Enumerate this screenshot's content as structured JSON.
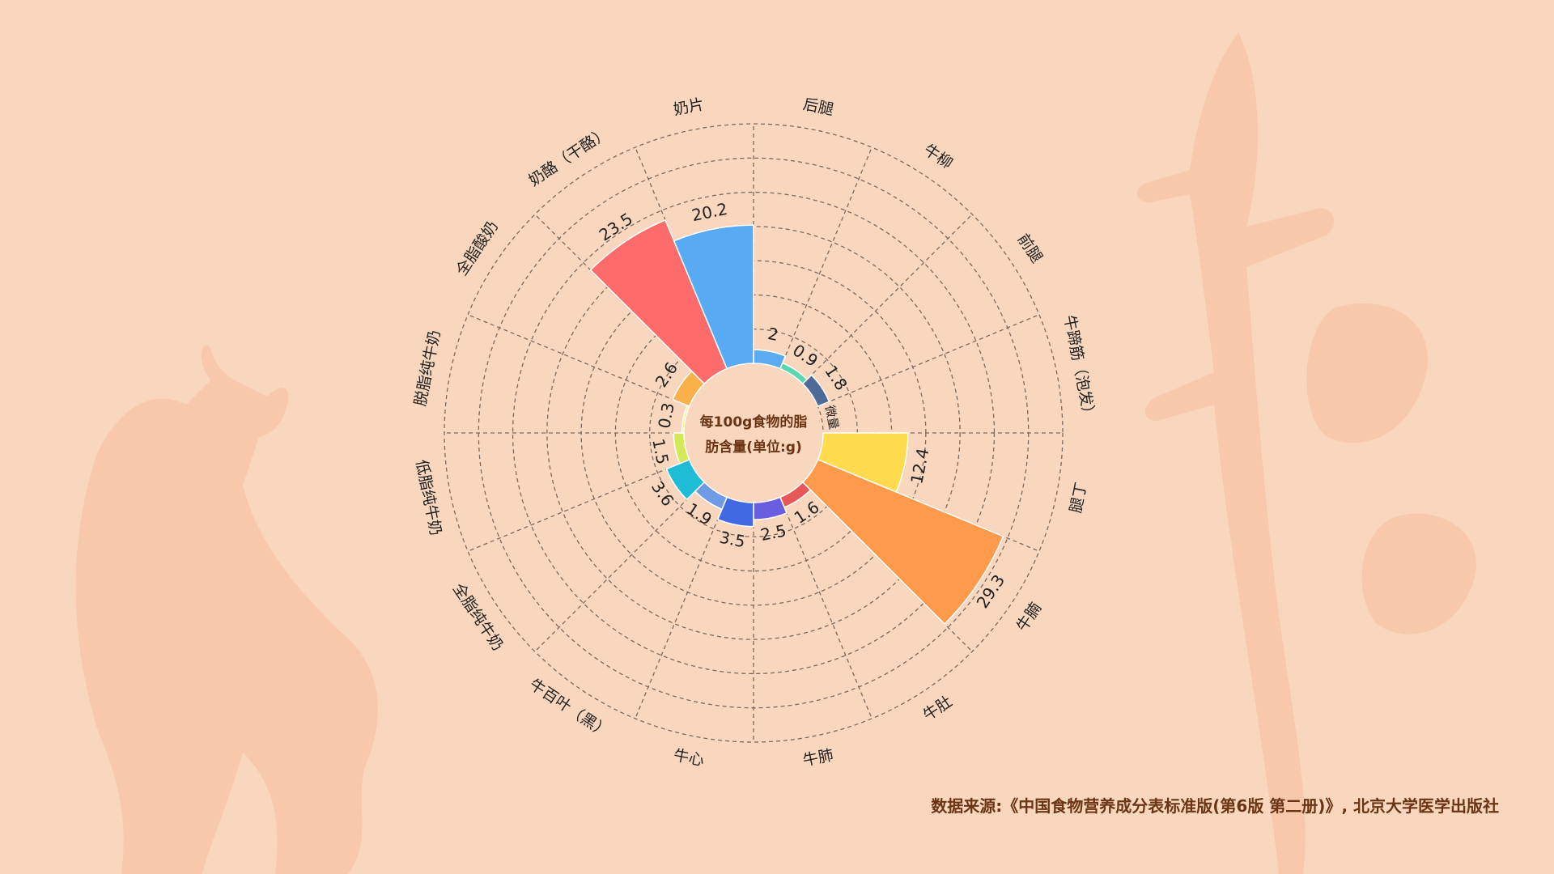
{
  "chart_data": {
    "type": "bar",
    "subtype": "polar-rose",
    "title": "每100g食物的脂肪含量(单位:g)",
    "title_lines": [
      "每100g食物的脂",
      "肪含量(单位:g)"
    ],
    "categories": [
      "后腿",
      "牛柳",
      "前腿",
      "牛蹄筋（泡发）",
      "腿丁",
      "牛腩",
      "牛肚",
      "牛肺",
      "牛心",
      "牛百叶（黑）",
      "全脂纯牛奶",
      "低脂纯牛奶",
      "脱脂纯牛奶",
      "全脂酸奶",
      "奶酪（干酪）",
      "奶片"
    ],
    "values": [
      2,
      0.9,
      1.8,
      null,
      12.4,
      29.3,
      1.6,
      2.5,
      3.5,
      1.9,
      3.6,
      1.5,
      0.3,
      2.6,
      23.5,
      20.2
    ],
    "value_labels": [
      "2",
      "0.9",
      "1.8",
      "微量",
      "12.4",
      "29.3",
      "1.6",
      "2.5",
      "3.5",
      "1.9",
      "3.6",
      "1.5",
      "0.3",
      "2.6",
      "23.5",
      "20.2"
    ],
    "colors": [
      "#5aabf0",
      "#5cd6b0",
      "#4e6a96",
      "#999999",
      "#ffdb4d",
      "#ff9a4a",
      "#e85858",
      "#6a5de0",
      "#4169e1",
      "#6e9ae6",
      "#1fbcd6",
      "#d4e957",
      "#f2f07a",
      "#fbb04a",
      "#fd6b6b",
      "#58abf3"
    ],
    "rlim": [
      0,
      35
    ],
    "grid": true
  },
  "source": "数据来源:《中国食物营养成分表标准版(第6版 第二册)》, 北京大学医学出版社",
  "background_color": "#f9d7be"
}
